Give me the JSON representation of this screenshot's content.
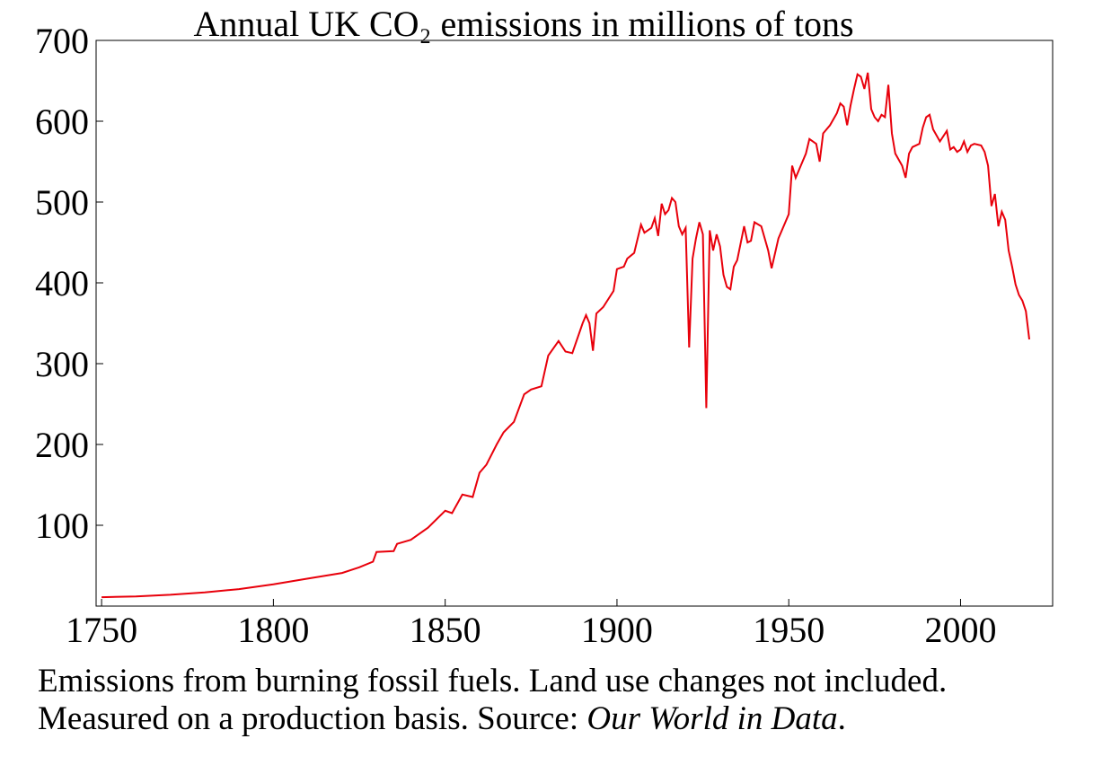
{
  "chart_data": {
    "type": "line",
    "title": "Annual UK CO₂ emissions in millions of tons",
    "caption": [
      "Emissions from burning fossil fuels. Land use changes not included.",
      [
        "Measured on a production basis. Source: ",
        "Our World in Data",
        "."
      ]
    ],
    "x": [
      1750,
      1760,
      1770,
      1780,
      1790,
      1800,
      1810,
      1820,
      1825,
      1829,
      1830,
      1835,
      1836,
      1840,
      1845,
      1850,
      1852,
      1855,
      1858,
      1860,
      1862,
      1865,
      1867,
      1870,
      1873,
      1875,
      1878,
      1880,
      1883,
      1885,
      1887,
      1890,
      1891,
      1892,
      1893,
      1894,
      1896,
      1899,
      1900,
      1902,
      1903,
      1905,
      1907,
      1908,
      1910,
      1911,
      1912,
      1913,
      1914,
      1915,
      1916,
      1917,
      1918,
      1919,
      1920,
      1921,
      1922,
      1923,
      1924,
      1925,
      1926,
      1927,
      1928,
      1929,
      1930,
      1931,
      1932,
      1933,
      1934,
      1935,
      1937,
      1938,
      1939,
      1940,
      1942,
      1944,
      1945,
      1947,
      1949,
      1950,
      1951,
      1952,
      1953,
      1955,
      1956,
      1958,
      1959,
      1960,
      1962,
      1964,
      1965,
      1966,
      1967,
      1968,
      1969,
      1970,
      1971,
      1972,
      1973,
      1974,
      1975,
      1976,
      1977,
      1978,
      1979,
      1980,
      1981,
      1983,
      1984,
      1985,
      1986,
      1988,
      1989,
      1990,
      1991,
      1992,
      1994,
      1996,
      1997,
      1998,
      1999,
      2000,
      2001,
      2002,
      2003,
      2004,
      2006,
      2007,
      2008,
      2009,
      2010,
      2011,
      2012,
      2013,
      2014,
      2015,
      2016,
      2017,
      2018,
      2019,
      2020
    ],
    "series": [
      {
        "name": "UK CO2",
        "color": "#e8000b",
        "values": [
          11,
          12,
          14,
          17,
          21,
          27,
          34,
          41,
          48,
          55,
          67,
          68,
          77,
          82,
          97,
          118,
          115,
          138,
          135,
          165,
          175,
          200,
          215,
          228,
          262,
          268,
          272,
          310,
          328,
          315,
          313,
          350,
          360,
          350,
          316,
          362,
          370,
          390,
          417,
          420,
          430,
          437,
          472,
          462,
          468,
          480,
          458,
          498,
          485,
          490,
          505,
          500,
          470,
          460,
          468,
          320,
          430,
          455,
          475,
          460,
          245,
          465,
          440,
          460,
          445,
          410,
          395,
          392,
          420,
          428,
          470,
          450,
          452,
          475,
          470,
          440,
          418,
          455,
          475,
          485,
          545,
          530,
          540,
          560,
          578,
          572,
          550,
          585,
          595,
          610,
          622,
          618,
          595,
          620,
          640,
          658,
          655,
          640,
          660,
          615,
          605,
          600,
          608,
          605,
          645,
          585,
          560,
          545,
          530,
          560,
          568,
          572,
          592,
          605,
          608,
          590,
          575,
          588,
          565,
          568,
          562,
          565,
          575,
          562,
          570,
          572,
          570,
          562,
          545,
          495,
          510,
          470,
          488,
          478,
          440,
          420,
          398,
          385,
          378,
          365,
          330
        ]
      }
    ],
    "xlim": [
      1748.4,
      2026.8
    ],
    "ylim": [
      0,
      700
    ],
    "xticks": [
      1750,
      1800,
      1850,
      1900,
      1950,
      2000
    ],
    "yticks": [
      100,
      200,
      300,
      400,
      500,
      600,
      700
    ]
  }
}
